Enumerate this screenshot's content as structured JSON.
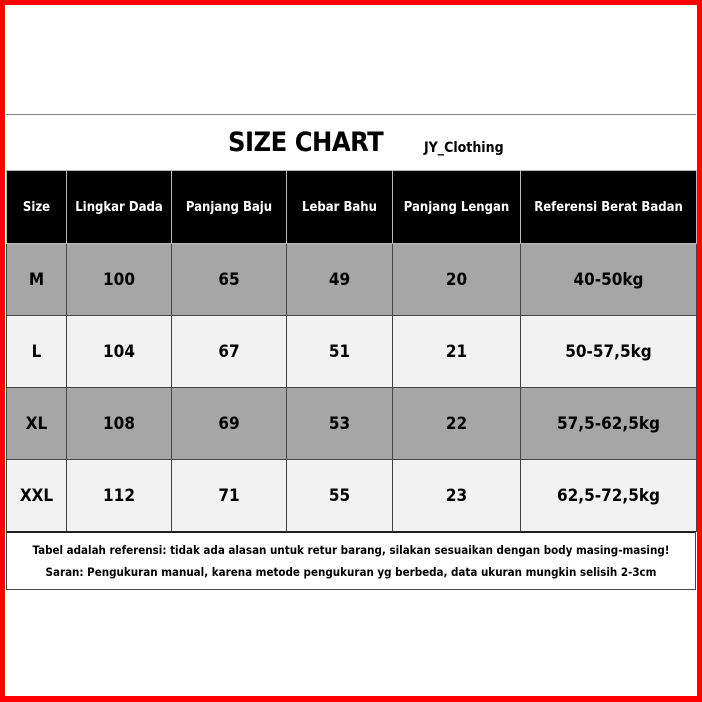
{
  "title": "SIZE CHART",
  "brand": "JY_Clothing",
  "colors": {
    "frame": "#ff0000",
    "header_bg": "#000000",
    "row_dark": "#a6a6a6",
    "row_light": "#f2f2f2"
  },
  "table": {
    "headers": [
      "Size",
      "Lingkar Dada",
      "Panjang Baju",
      "Lebar Bahu",
      "Panjang Lengan",
      "Referensi Berat Badan"
    ],
    "rows": [
      [
        "M",
        "100",
        "65",
        "49",
        "20",
        "40-50kg"
      ],
      [
        "L",
        "104",
        "67",
        "51",
        "21",
        "50-57,5kg"
      ],
      [
        "XL",
        "108",
        "69",
        "53",
        "22",
        "57,5-62,5kg"
      ],
      [
        "XXL",
        "112",
        "71",
        "55",
        "23",
        "62,5-72,5kg"
      ]
    ]
  },
  "notes": [
    "Tabel adalah referensi: tidak ada alasan untuk retur barang, silakan sesuaikan dengan body masing-masing!",
    "Saran: Pengukuran manual, karena metode pengukuran yg berbeda, data ukuran mungkin selisih 2-3cm"
  ]
}
